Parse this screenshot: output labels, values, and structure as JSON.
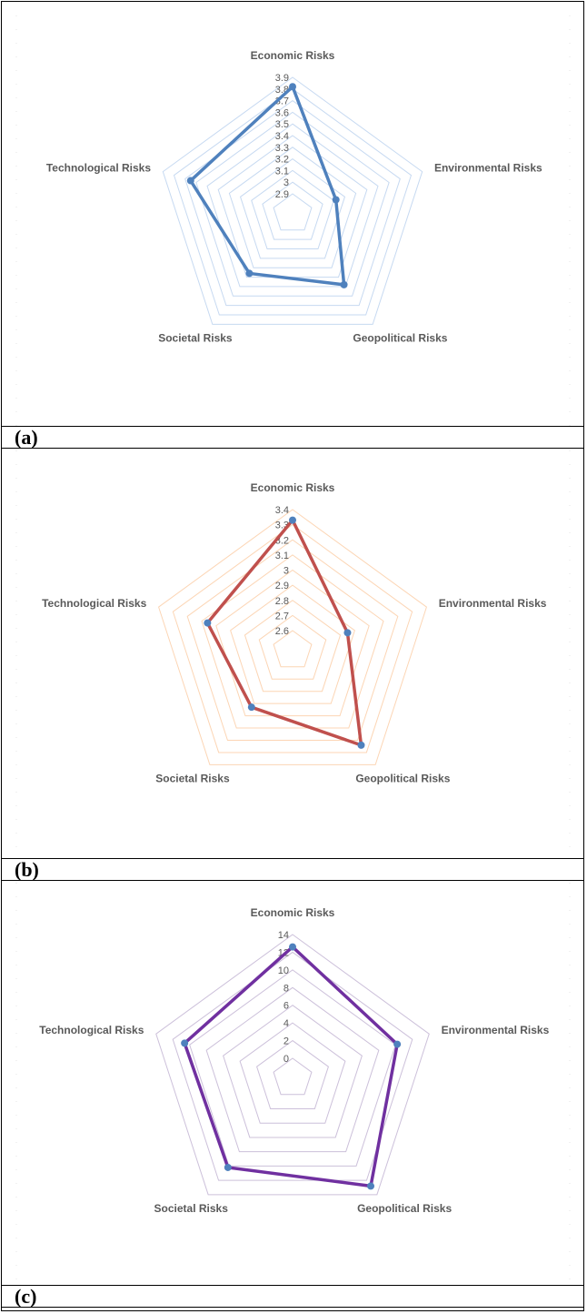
{
  "chart_data": [
    {
      "panel_label": "(a)",
      "type": "radar",
      "categories": [
        "Economic Risks",
        "Environmental Risks",
        "Geopolitical Risks",
        "Societal Risks",
        "Technological Risks"
      ],
      "series": [
        {
          "values": [
            3.82,
            3.12,
            3.48,
            3.36,
            3.65
          ]
        }
      ],
      "ticks": [
        "2.9",
        "3",
        "3.1",
        "3.2",
        "3.3",
        "3.4",
        "3.5",
        "3.6",
        "3.7",
        "3.8",
        "3.9"
      ],
      "rmin": 2.9,
      "rmax": 3.9,
      "line_color": "#4f81bd",
      "grid_color": "#c6d9f1"
    },
    {
      "panel_label": "(b)",
      "type": "radar",
      "categories": [
        "Economic Risks",
        "Environmental Risks",
        "Geopolitical Risks",
        "Societal Risks",
        "Technological Risks"
      ],
      "series": [
        {
          "values": [
            3.33,
            2.85,
            3.24,
            2.93,
            3.06
          ]
        }
      ],
      "ticks": [
        "2.6",
        "2.7",
        "2.8",
        "2.9",
        "3",
        "3.1",
        "3.2",
        "3.3",
        "3.4"
      ],
      "rmin": 2.6,
      "rmax": 3.4,
      "line_color": "#c0504d",
      "grid_color": "#fcd5b4"
    },
    {
      "panel_label": "(c)",
      "type": "radar",
      "categories": [
        "Economic Risks",
        "Environmental Risks",
        "Geopolitical Risks",
        "Societal Risks",
        "Technological Risks"
      ],
      "series": [
        {
          "values": [
            12.6,
            10.2,
            12.8,
            10.2,
            10.6
          ]
        }
      ],
      "ticks": [
        "0",
        "2",
        "4",
        "6",
        "8",
        "10",
        "12",
        "14"
      ],
      "rmin": 0,
      "rmax": 14,
      "line_color": "#7030a0",
      "grid_color": "#ccc0da"
    }
  ]
}
